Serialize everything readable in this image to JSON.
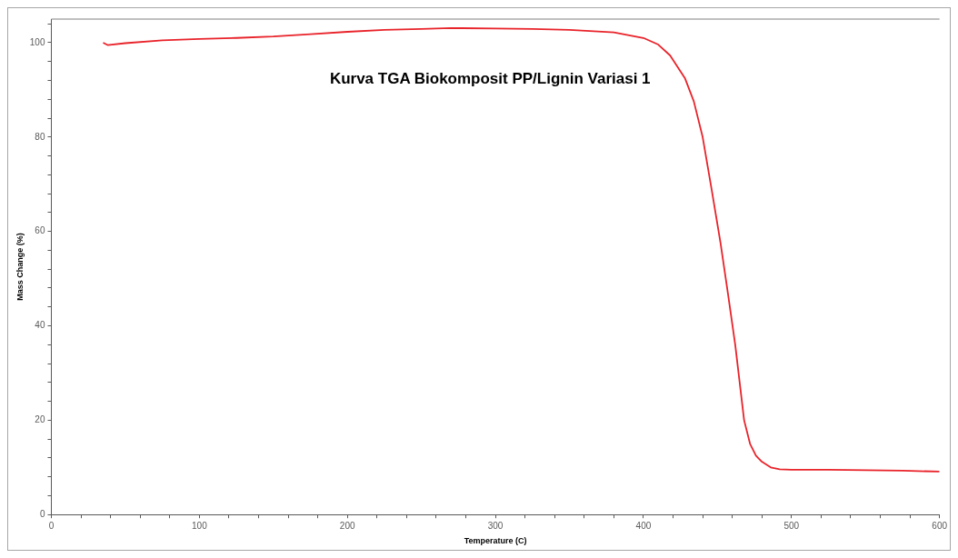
{
  "chart_data": {
    "type": "line",
    "title": "Kurva TGA Biokomposit PP/Lignin Variasi 1",
    "xlabel": "Temperature (C)",
    "ylabel": "Mass Change (%)",
    "x": [
      35,
      38,
      50,
      75,
      100,
      125,
      150,
      175,
      200,
      225,
      250,
      270,
      300,
      325,
      350,
      380,
      400,
      410,
      418,
      428,
      434,
      440,
      446,
      452,
      457,
      462,
      468,
      472,
      476,
      480,
      486,
      492,
      500,
      525,
      550,
      575,
      600
    ],
    "series": [
      {
        "color": "#e8232a",
        "values": [
          100,
          99.5,
          99.9,
          100.5,
          100.8,
          101.0,
          101.3,
          101.8,
          102.3,
          102.7,
          102.9,
          103.1,
          103.0,
          102.9,
          102.7,
          102.2,
          101.0,
          99.6,
          97.3,
          92.5,
          87.6,
          80,
          69,
          57.7,
          47,
          36,
          20,
          15,
          12.5,
          11.2,
          10,
          9.6,
          9.5,
          9.5,
          9.4,
          9.3,
          9.1
        ]
      }
    ],
    "xlim": [
      0,
      600
    ],
    "xticks": [
      0,
      {
        "value": 20,
        "label": null
      },
      {
        "value": 40,
        "label": null
      },
      {
        "value": 60,
        "label": null
      },
      {
        "value": 80,
        "label": null
      },
      100,
      {
        "value": 120,
        "label": null
      },
      {
        "value": 140,
        "label": null
      },
      {
        "value": 160,
        "label": null
      },
      {
        "value": 180,
        "label": null
      },
      200,
      {
        "value": 220,
        "label": null
      },
      {
        "value": 240,
        "label": null
      },
      {
        "value": 260,
        "label": null
      },
      {
        "value": 280,
        "label": null
      },
      300,
      {
        "value": 320,
        "label": null
      },
      {
        "value": 340,
        "label": null
      },
      {
        "value": 360,
        "label": null
      },
      {
        "value": 380,
        "label": null
      },
      400,
      {
        "value": 420,
        "label": null
      },
      {
        "value": 440,
        "label": null
      },
      {
        "value": 460,
        "label": null
      },
      {
        "value": 480,
        "label": null
      },
      500,
      {
        "value": 520,
        "label": null
      },
      {
        "value": 540,
        "label": null
      },
      {
        "value": 560,
        "label": null
      },
      {
        "value": 580,
        "label": null
      },
      600
    ],
    "ylim": [
      0,
      105
    ],
    "yticks": [
      0,
      {
        "value": 4,
        "label": null
      },
      {
        "value": 8,
        "label": null
      },
      {
        "value": 12,
        "label": null
      },
      {
        "value": 16,
        "label": null
      },
      20,
      {
        "value": 24,
        "label": null
      },
      {
        "value": 28,
        "label": null
      },
      {
        "value": 32,
        "label": null
      },
      {
        "value": 36,
        "label": null
      },
      40,
      {
        "value": 44,
        "label": null
      },
      {
        "value": 48,
        "label": null
      },
      {
        "value": 52,
        "label": null
      },
      {
        "value": 56,
        "label": null
      },
      60,
      {
        "value": 64,
        "label": null
      },
      {
        "value": 68,
        "label": null
      },
      {
        "value": 72,
        "label": null
      },
      {
        "value": 76,
        "label": null
      },
      80,
      {
        "value": 84,
        "label": null
      },
      {
        "value": 88,
        "label": null
      },
      {
        "value": 92,
        "label": null
      },
      {
        "value": 96,
        "label": null
      },
      100,
      {
        "value": 104,
        "label": null
      }
    ],
    "grid": false,
    "legend": false,
    "marker": "none",
    "line_style": "solid"
  }
}
